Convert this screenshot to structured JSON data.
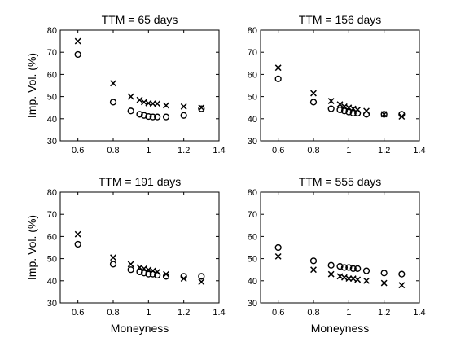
{
  "chart_data": [
    {
      "type": "scatter",
      "title": "TTM = 65 days",
      "xlabel": "",
      "ylabel": "Imp. Vol. (%)",
      "xlim": [
        0.5,
        1.4
      ],
      "ylim": [
        30,
        80
      ],
      "xticks": [
        "0.6",
        "0.8",
        "1",
        "1.2",
        "1.4"
      ],
      "yticks": [
        "30",
        "40",
        "50",
        "60",
        "70",
        "80"
      ],
      "grid": false,
      "series": [
        {
          "marker": "circle",
          "x": [
            0.6,
            0.8,
            0.9,
            0.95,
            0.975,
            1.0,
            1.025,
            1.05,
            1.1,
            1.2,
            1.3
          ],
          "y": [
            69,
            47.5,
            43.5,
            42,
            41.5,
            41,
            40.8,
            40.8,
            40.8,
            41.5,
            44.5
          ]
        },
        {
          "marker": "x",
          "x": [
            0.6,
            0.8,
            0.9,
            0.95,
            0.975,
            1.0,
            1.025,
            1.05,
            1.1,
            1.2,
            1.3
          ],
          "y": [
            75,
            56,
            50,
            48.5,
            47.5,
            47,
            46.8,
            46.8,
            46,
            45.5,
            45
          ]
        }
      ]
    },
    {
      "type": "scatter",
      "title": "TTM = 156 days",
      "xlabel": "",
      "ylabel": "",
      "xlim": [
        0.5,
        1.4
      ],
      "ylim": [
        30,
        80
      ],
      "xticks": [
        "0.6",
        "0.8",
        "1",
        "1.2",
        "1.4"
      ],
      "yticks": [
        "30",
        "40",
        "50",
        "60",
        "70",
        "80"
      ],
      "grid": false,
      "series": [
        {
          "marker": "circle",
          "x": [
            0.6,
            0.8,
            0.9,
            0.95,
            0.975,
            1.0,
            1.025,
            1.05,
            1.1,
            1.2,
            1.3
          ],
          "y": [
            58,
            47.5,
            44.5,
            44,
            43.5,
            43,
            42.5,
            42.5,
            42,
            42,
            42
          ]
        },
        {
          "marker": "x",
          "x": [
            0.6,
            0.8,
            0.9,
            0.95,
            0.975,
            1.0,
            1.025,
            1.05,
            1.1,
            1.2,
            1.3
          ],
          "y": [
            63,
            51.5,
            48,
            46.5,
            45.5,
            45,
            44.5,
            44,
            43.5,
            42,
            41
          ]
        }
      ]
    },
    {
      "type": "scatter",
      "title": "TTM = 191 days",
      "xlabel": "Moneyness",
      "ylabel": "Imp. Vol. (%)",
      "xlim": [
        0.5,
        1.4
      ],
      "ylim": [
        30,
        80
      ],
      "xticks": [
        "0.6",
        "0.8",
        "1",
        "1.2",
        "1.4"
      ],
      "yticks": [
        "30",
        "40",
        "50",
        "60",
        "70",
        "80"
      ],
      "grid": false,
      "series": [
        {
          "marker": "circle",
          "x": [
            0.6,
            0.8,
            0.9,
            0.95,
            0.975,
            1.0,
            1.025,
            1.05,
            1.1,
            1.2,
            1.3
          ],
          "y": [
            56.5,
            47.5,
            45,
            44,
            43.5,
            43,
            43,
            42.5,
            42,
            42,
            42
          ]
        },
        {
          "marker": "x",
          "x": [
            0.6,
            0.8,
            0.9,
            0.95,
            0.975,
            1.0,
            1.025,
            1.05,
            1.1,
            1.2,
            1.3
          ],
          "y": [
            61,
            50.5,
            47.5,
            46,
            45.5,
            45,
            44.5,
            44,
            43,
            41,
            39.5
          ]
        }
      ]
    },
    {
      "type": "scatter",
      "title": "TTM = 555 days",
      "xlabel": "Moneyness",
      "ylabel": "",
      "xlim": [
        0.5,
        1.4
      ],
      "ylim": [
        30,
        80
      ],
      "xticks": [
        "0.6",
        "0.8",
        "1",
        "1.2",
        "1.4"
      ],
      "yticks": [
        "30",
        "40",
        "50",
        "60",
        "70",
        "80"
      ],
      "grid": false,
      "series": [
        {
          "marker": "circle",
          "x": [
            0.6,
            0.8,
            0.9,
            0.95,
            0.975,
            1.0,
            1.025,
            1.05,
            1.1,
            1.2,
            1.3
          ],
          "y": [
            55,
            49,
            47,
            46.5,
            46,
            46,
            45.5,
            45.5,
            44.5,
            43.5,
            43
          ]
        },
        {
          "marker": "x",
          "x": [
            0.6,
            0.8,
            0.9,
            0.95,
            0.975,
            1.0,
            1.025,
            1.05,
            1.1,
            1.2,
            1.3
          ],
          "y": [
            51,
            45,
            43,
            42,
            41.5,
            41,
            41,
            40.5,
            40,
            39,
            38
          ]
        }
      ]
    }
  ]
}
